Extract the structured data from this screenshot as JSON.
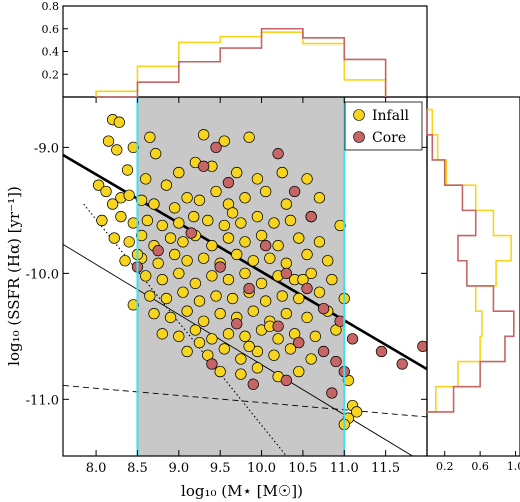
{
  "chart_data": {
    "type": "scatter",
    "main": {
      "xlabel": "log₁₀ (M⋆ [M☉])",
      "ylabel": "log₁₀ (SSFR (Hα) [yr⁻¹])",
      "xlim": [
        7.6,
        12.0
      ],
      "ylim": [
        -11.45,
        -8.6
      ],
      "xticks": [
        "8.0",
        "8.5",
        "9.0",
        "9.5",
        "10.0",
        "10.5",
        "11.0",
        "11.5"
      ],
      "yticks": [
        "-9.0",
        "-10.0",
        "-11.0"
      ],
      "shaded_region_x": [
        8.5,
        11.0
      ],
      "vertical_lines_x": [
        8.5,
        11.0
      ],
      "vertical_line_color": "#40e0f0",
      "shade_color": "#c8c8c8",
      "lines": [
        {
          "name": "thick",
          "style": "solid",
          "width": 2.6,
          "x": [
            7.6,
            12.0
          ],
          "y": [
            -9.06,
            -10.76
          ]
        },
        {
          "name": "thin",
          "style": "solid",
          "width": 0.9,
          "x": [
            7.6,
            12.0
          ],
          "y": [
            -9.77,
            -11.52
          ]
        },
        {
          "name": "dashed",
          "style": "dashed",
          "width": 0.9,
          "x": [
            7.6,
            12.0
          ],
          "y": [
            -10.89,
            -11.14
          ]
        },
        {
          "name": "dotted",
          "style": "dotted",
          "width": 1.1,
          "x": [
            7.85,
            10.3
          ],
          "y": [
            -9.45,
            -11.45
          ]
        }
      ],
      "legend": {
        "position": "top-right",
        "entries": [
          {
            "label": "Infall",
            "color": "#f7d51e"
          },
          {
            "label": "Core",
            "color": "#c56565"
          }
        ]
      },
      "infall": {
        "color": "#f7d51e",
        "points": [
          [
            8.2,
            -8.78
          ],
          [
            8.28,
            -8.8
          ],
          [
            8.15,
            -8.95
          ],
          [
            8.25,
            -9.02
          ],
          [
            8.38,
            -9.18
          ],
          [
            8.45,
            -9.0
          ],
          [
            8.65,
            -8.92
          ],
          [
            8.72,
            -9.05
          ],
          [
            9.0,
            -9.2
          ],
          [
            8.6,
            -9.25
          ],
          [
            8.85,
            -9.3
          ],
          [
            9.3,
            -8.9
          ],
          [
            9.55,
            -8.95
          ],
          [
            9.85,
            -8.92
          ],
          [
            9.2,
            -9.12
          ],
          [
            9.4,
            -9.15
          ],
          [
            9.7,
            -9.2
          ],
          [
            9.95,
            -9.25
          ],
          [
            10.25,
            -9.2
          ],
          [
            10.55,
            -9.25
          ],
          [
            8.03,
            -9.3
          ],
          [
            8.12,
            -9.35
          ],
          [
            8.3,
            -9.4
          ],
          [
            8.2,
            -9.45
          ],
          [
            8.4,
            -9.38
          ],
          [
            8.55,
            -9.42
          ],
          [
            8.7,
            -9.45
          ],
          [
            8.95,
            -9.48
          ],
          [
            9.1,
            -9.4
          ],
          [
            9.25,
            -9.42
          ],
          [
            9.45,
            -9.35
          ],
          [
            9.6,
            -9.45
          ],
          [
            9.8,
            -9.4
          ],
          [
            10.05,
            -9.35
          ],
          [
            10.3,
            -9.45
          ],
          [
            10.7,
            -9.4
          ],
          [
            8.07,
            -9.58
          ],
          [
            8.3,
            -9.55
          ],
          [
            8.45,
            -9.6
          ],
          [
            8.62,
            -9.58
          ],
          [
            8.8,
            -9.62
          ],
          [
            9.0,
            -9.6
          ],
          [
            9.18,
            -9.55
          ],
          [
            9.35,
            -9.58
          ],
          [
            9.55,
            -9.62
          ],
          [
            9.75,
            -9.6
          ],
          [
            9.95,
            -9.55
          ],
          [
            10.15,
            -9.6
          ],
          [
            10.35,
            -9.58
          ],
          [
            10.6,
            -9.55
          ],
          [
            10.95,
            -9.62
          ],
          [
            8.22,
            -9.72
          ],
          [
            8.4,
            -9.75
          ],
          [
            8.55,
            -9.7
          ],
          [
            8.7,
            -9.78
          ],
          [
            8.9,
            -9.72
          ],
          [
            9.05,
            -9.75
          ],
          [
            9.2,
            -9.7
          ],
          [
            9.4,
            -9.78
          ],
          [
            9.6,
            -9.72
          ],
          [
            9.8,
            -9.75
          ],
          [
            10.0,
            -9.7
          ],
          [
            10.2,
            -9.78
          ],
          [
            10.45,
            -9.72
          ],
          [
            10.7,
            -9.75
          ],
          [
            8.35,
            -9.9
          ],
          [
            8.55,
            -9.88
          ],
          [
            8.75,
            -9.92
          ],
          [
            8.95,
            -9.85
          ],
          [
            9.1,
            -9.9
          ],
          [
            9.3,
            -9.88
          ],
          [
            9.5,
            -9.92
          ],
          [
            9.7,
            -9.85
          ],
          [
            9.9,
            -9.9
          ],
          [
            10.1,
            -9.88
          ],
          [
            10.3,
            -9.92
          ],
          [
            10.55,
            -9.85
          ],
          [
            10.8,
            -9.9
          ],
          [
            8.6,
            -10.02
          ],
          [
            8.8,
            -10.05
          ],
          [
            9.0,
            -10.0
          ],
          [
            9.2,
            -10.08
          ],
          [
            9.4,
            -10.02
          ],
          [
            9.6,
            -10.05
          ],
          [
            9.8,
            -10.0
          ],
          [
            10.0,
            -10.08
          ],
          [
            10.2,
            -10.02
          ],
          [
            10.4,
            -10.05
          ],
          [
            10.6,
            -10.0
          ],
          [
            10.85,
            -10.05
          ],
          [
            8.65,
            -10.18
          ],
          [
            8.85,
            -10.2
          ],
          [
            9.05,
            -10.15
          ],
          [
            9.25,
            -10.22
          ],
          [
            9.45,
            -10.18
          ],
          [
            9.65,
            -10.2
          ],
          [
            9.85,
            -10.15
          ],
          [
            10.05,
            -10.22
          ],
          [
            10.25,
            -10.18
          ],
          [
            10.45,
            -10.2
          ],
          [
            10.7,
            -10.15
          ],
          [
            11.0,
            -10.2
          ],
          [
            8.7,
            -10.32
          ],
          [
            8.9,
            -10.35
          ],
          [
            9.1,
            -10.3
          ],
          [
            9.3,
            -10.38
          ],
          [
            9.5,
            -10.32
          ],
          [
            9.7,
            -10.35
          ],
          [
            9.9,
            -10.3
          ],
          [
            10.1,
            -10.38
          ],
          [
            10.3,
            -10.32
          ],
          [
            10.55,
            -10.35
          ],
          [
            10.8,
            -10.3
          ],
          [
            8.8,
            -10.48
          ],
          [
            9.0,
            -10.5
          ],
          [
            9.2,
            -10.45
          ],
          [
            9.4,
            -10.52
          ],
          [
            9.6,
            -10.48
          ],
          [
            9.8,
            -10.5
          ],
          [
            10.0,
            -10.45
          ],
          [
            10.2,
            -10.52
          ],
          [
            10.4,
            -10.48
          ],
          [
            10.65,
            -10.5
          ],
          [
            9.1,
            -10.62
          ],
          [
            9.35,
            -10.65
          ],
          [
            9.55,
            -10.6
          ],
          [
            9.75,
            -10.68
          ],
          [
            9.95,
            -10.62
          ],
          [
            10.15,
            -10.65
          ],
          [
            10.35,
            -10.6
          ],
          [
            10.6,
            -10.68
          ],
          [
            9.5,
            -10.78
          ],
          [
            9.75,
            -10.8
          ],
          [
            9.95,
            -10.75
          ],
          [
            10.2,
            -10.82
          ],
          [
            10.45,
            -10.78
          ],
          [
            11.05,
            -10.85
          ],
          [
            11.1,
            -11.05
          ],
          [
            11.15,
            -11.1
          ],
          [
            11.05,
            -11.15
          ],
          [
            11.0,
            -11.2
          ],
          [
            8.5,
            -9.85
          ],
          [
            8.45,
            -10.25
          ],
          [
            9.65,
            -9.52
          ],
          [
            10.1,
            -10.42
          ],
          [
            9.25,
            -10.55
          ],
          [
            9.85,
            -10.58
          ],
          [
            10.5,
            -10.05
          ],
          [
            10.9,
            -10.45
          ]
        ]
      },
      "core": {
        "color": "#c56565",
        "points": [
          [
            8.5,
            -9.95
          ],
          [
            8.75,
            -9.82
          ],
          [
            9.3,
            -9.15
          ],
          [
            9.45,
            -9.0
          ],
          [
            9.6,
            -9.28
          ],
          [
            10.2,
            -9.05
          ],
          [
            10.4,
            -9.35
          ],
          [
            10.6,
            -9.55
          ],
          [
            9.15,
            -9.68
          ],
          [
            9.5,
            -9.95
          ],
          [
            9.85,
            -10.12
          ],
          [
            10.05,
            -9.78
          ],
          [
            10.3,
            -10.0
          ],
          [
            10.55,
            -10.12
          ],
          [
            10.75,
            -10.28
          ],
          [
            10.95,
            -10.38
          ],
          [
            9.7,
            -10.4
          ],
          [
            10.2,
            -10.42
          ],
          [
            10.45,
            -10.55
          ],
          [
            10.75,
            -10.62
          ],
          [
            10.9,
            -10.7
          ],
          [
            11.1,
            -10.52
          ],
          [
            11.45,
            -10.62
          ],
          [
            11.7,
            -10.72
          ],
          [
            11.95,
            -10.58
          ],
          [
            10.3,
            -10.85
          ],
          [
            9.4,
            -10.72
          ],
          [
            9.9,
            -10.88
          ],
          [
            11.0,
            -10.78
          ],
          [
            10.85,
            -10.95
          ]
        ]
      }
    },
    "top_histogram": {
      "type": "histogram",
      "yticks": [
        "0.2",
        "0.4",
        "0.6",
        "0.8"
      ],
      "ylim": [
        0,
        0.8
      ],
      "bin_edges": [
        8.0,
        8.5,
        9.0,
        9.5,
        10.0,
        10.5,
        11.0,
        11.5
      ],
      "series": [
        {
          "name": "Infall",
          "color": "#f7d51e",
          "values": [
            0.05,
            0.27,
            0.48,
            0.53,
            0.57,
            0.47,
            0.15
          ]
        },
        {
          "name": "Core",
          "color": "#c56565",
          "values": [
            0.0,
            0.13,
            0.31,
            0.43,
            0.6,
            0.52,
            0.33
          ]
        }
      ]
    },
    "right_histogram": {
      "type": "histogram",
      "orientation": "horizontal",
      "xticks": [
        "0.2",
        "0.6",
        "1.0"
      ],
      "xlim": [
        0,
        1.05
      ],
      "bin_edges": [
        -8.7,
        -8.9,
        -9.1,
        -9.3,
        -9.5,
        -9.7,
        -9.9,
        -10.1,
        -10.3,
        -10.5,
        -10.7,
        -10.9,
        -11.1
      ],
      "series": [
        {
          "name": "Infall",
          "color": "#f7d51e",
          "values": [
            0.06,
            0.12,
            0.22,
            0.55,
            0.75,
            0.95,
            0.78,
            0.55,
            0.62,
            0.6,
            0.35,
            0.1
          ]
        },
        {
          "name": "Core",
          "color": "#c56565",
          "values": [
            0.0,
            0.06,
            0.2,
            0.4,
            0.55,
            0.35,
            0.45,
            0.75,
            0.98,
            0.88,
            0.6,
            0.3
          ]
        }
      ]
    }
  }
}
